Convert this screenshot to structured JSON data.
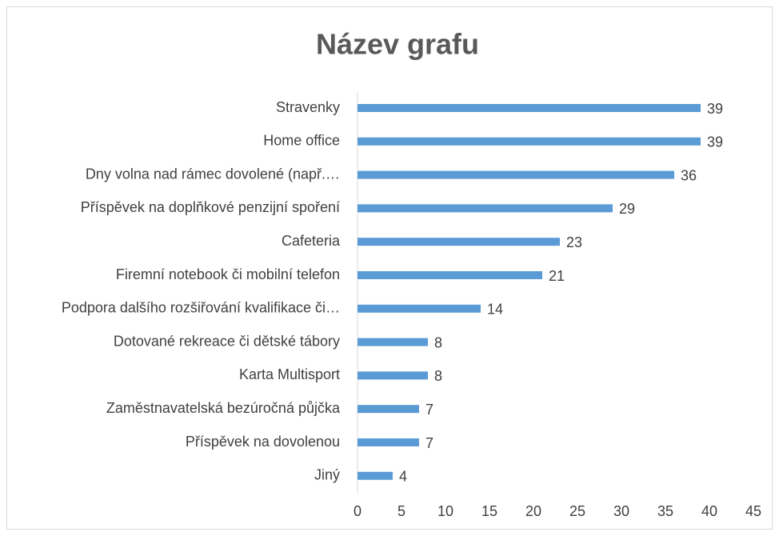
{
  "chart_data": {
    "type": "bar",
    "orientation": "horizontal",
    "title": "Název grafu",
    "categories": [
      "Stravenky",
      "Home office",
      "Dny volna nad rámec dovolené (např.…",
      "Příspěvek na doplňkové penzijní spoření",
      "Cafeteria",
      "Firemní notebook či mobilní telefon",
      "Podpora dalšího rozšiřování kvalifikace či…",
      "Dotované rekreace či dětské tábory",
      "Karta Multisport",
      "Zaměstnavatelská bezúročná půjčka",
      "Příspěvek na dovolenou",
      "Jiný"
    ],
    "values": [
      39,
      39,
      36,
      29,
      23,
      21,
      14,
      8,
      8,
      7,
      7,
      4
    ],
    "color": "#5b9bd5",
    "xlim": [
      0,
      45
    ],
    "xticks": [
      0,
      5,
      10,
      15,
      20,
      25,
      30,
      35,
      40,
      45
    ],
    "grid": false
  }
}
